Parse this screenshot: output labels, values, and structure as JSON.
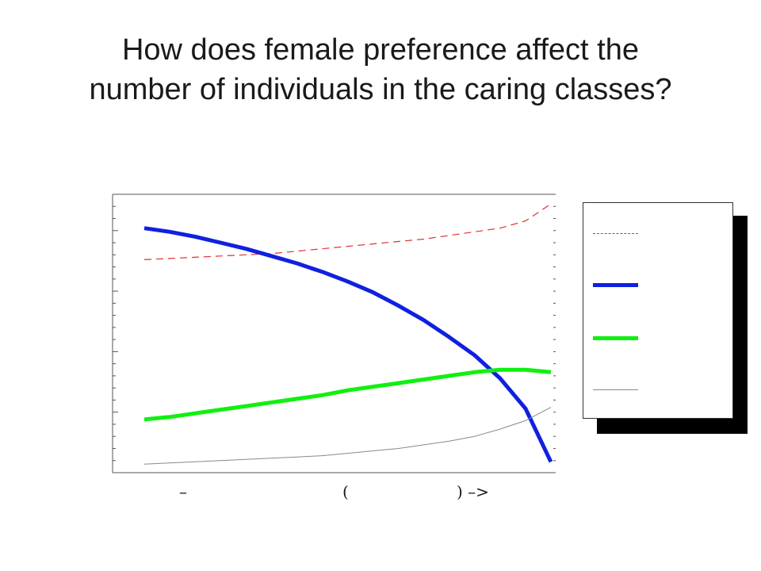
{
  "title": {
    "line1": "How does female preference affect the",
    "line2": "number of individuals in the caring classes?"
  },
  "x_axis_fragments": [
    "–",
    "(",
    ") –>"
  ],
  "chart_data": {
    "type": "line",
    "title": "",
    "xlabel": "",
    "ylabel": "",
    "xlim": [
      0,
      17
    ],
    "ylim": [
      0,
      23
    ],
    "x": [
      0,
      1,
      2,
      3,
      4,
      5,
      6,
      7,
      8,
      9,
      10,
      11,
      12,
      13,
      14,
      15,
      16
    ],
    "series": [
      {
        "color": "#e03030",
        "style": "dashed",
        "values": [
          17.6,
          17.7,
          17.8,
          17.9,
          18.0,
          18.1,
          18.3,
          18.5,
          18.7,
          18.9,
          19.1,
          19.3,
          19.6,
          19.9,
          20.2,
          20.8,
          22.2
        ]
      },
      {
        "color": "#1020e0",
        "style": "solid-thick",
        "values": [
          20.2,
          19.9,
          19.5,
          19.0,
          18.5,
          17.9,
          17.3,
          16.6,
          15.8,
          14.9,
          13.8,
          12.6,
          11.2,
          9.7,
          7.8,
          5.3,
          0.9
        ]
      },
      {
        "color": "#10f010",
        "style": "solid-thick",
        "values": [
          4.4,
          4.6,
          4.9,
          5.2,
          5.5,
          5.8,
          6.1,
          6.4,
          6.8,
          7.1,
          7.4,
          7.7,
          8.0,
          8.3,
          8.5,
          8.5,
          8.3
        ]
      },
      {
        "color": "#888888",
        "style": "solid-thin",
        "values": [
          0.7,
          0.8,
          0.9,
          1.0,
          1.1,
          1.2,
          1.3,
          1.4,
          1.6,
          1.8,
          2.0,
          2.3,
          2.6,
          3.0,
          3.6,
          4.3,
          5.4
        ]
      }
    ],
    "grid": false,
    "legend": "right"
  }
}
